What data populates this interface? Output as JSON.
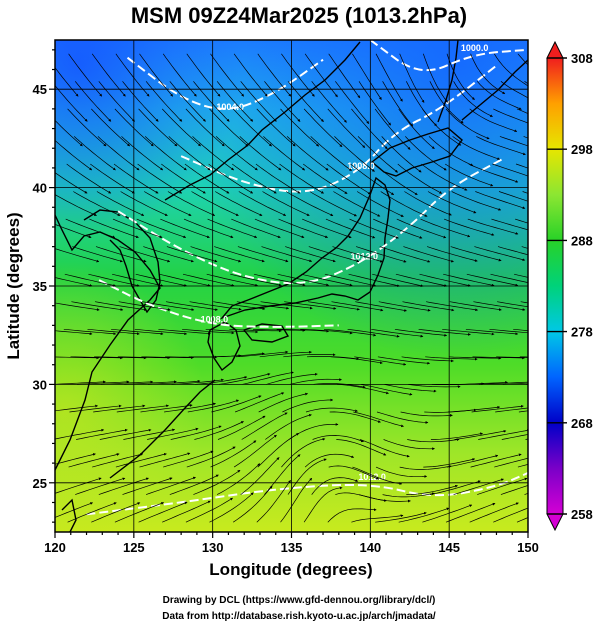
{
  "title": "MSM 09Z24Mar2025 (1013.2hPa)",
  "map": {
    "xlabel": "Longitude (degrees)",
    "ylabel": "Latitude  (degrees)",
    "lon_range": [
      120,
      150
    ],
    "lat_range": [
      22.5,
      47.5
    ],
    "lon_ticks": [
      120,
      125,
      130,
      135,
      140,
      145,
      150
    ],
    "lat_ticks": [
      25,
      30,
      35,
      40,
      45
    ],
    "field": "temperature (K) with wind streamlines and 1013.2 hPa contours"
  },
  "colorbar": {
    "min": 258,
    "max": 308,
    "ticks": [
      308,
      298,
      288,
      278,
      268,
      258
    ]
  },
  "isobars": [
    {
      "label": "1008.0",
      "points": [
        [
          122.8,
          35.3
        ],
        [
          126.0,
          34.0
        ],
        [
          130.0,
          33.0
        ],
        [
          134.0,
          32.9
        ],
        [
          138.0,
          33.0
        ]
      ]
    },
    {
      "label": "1012.0",
      "points": [
        [
          124.0,
          38.8
        ],
        [
          128.0,
          36.8
        ],
        [
          132.0,
          35.4
        ],
        [
          136.0,
          35.0
        ],
        [
          139.5,
          36.2
        ],
        [
          142.5,
          38.0
        ],
        [
          145.0,
          40.0
        ],
        [
          148.5,
          41.5
        ]
      ]
    },
    {
      "label": "1008.0",
      "points": [
        [
          128.0,
          41.6
        ],
        [
          132.0,
          40.2
        ],
        [
          136.0,
          39.6
        ],
        [
          139.3,
          40.8
        ],
        [
          141.5,
          42.8
        ],
        [
          144.5,
          44.0
        ],
        [
          148.0,
          46.2
        ]
      ]
    },
    {
      "label": "1004.0",
      "points": [
        [
          124.6,
          46.6
        ],
        [
          128.0,
          44.5
        ],
        [
          131.0,
          43.8
        ],
        [
          134.0,
          44.8
        ],
        [
          137.0,
          46.5
        ]
      ]
    },
    {
      "label": "1000.0",
      "points": [
        [
          140.0,
          47.5
        ],
        [
          143.2,
          45.6
        ],
        [
          146.5,
          46.8
        ],
        [
          150.0,
          47.0
        ]
      ]
    },
    {
      "label": "1012.0",
      "points": [
        [
          122.0,
          23.4
        ],
        [
          128.0,
          24.0
        ],
        [
          134.0,
          24.7
        ],
        [
          140.0,
          25.0
        ],
        [
          144.0,
          24.2
        ],
        [
          148.0,
          24.8
        ],
        [
          150.0,
          25.5
        ]
      ]
    }
  ],
  "credits": {
    "line1": "Drawing by DCL (https://www.gfd-dennou.org/library/dcl/)",
    "line2": "Data from http://database.rish.kyoto-u.ac.jp/arch/jmadata/"
  }
}
